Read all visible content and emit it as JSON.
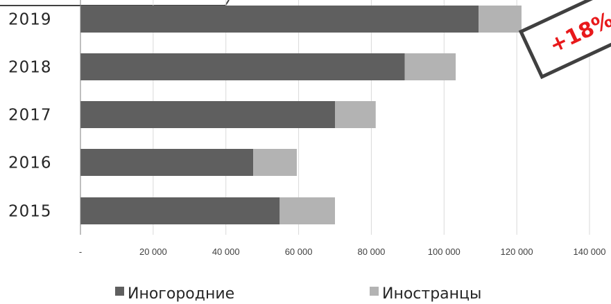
{
  "colors": {
    "inogorodnie": "#5f5f5f",
    "inostrantsy": "#b3b3b3",
    "grid": "#d9d9d9",
    "axis": "#7f7f7f",
    "stamp_border": "#404040",
    "stamp_text": "#e8191b"
  },
  "stamp": {
    "text": "+18%"
  },
  "chart_data": {
    "type": "bar",
    "orientation": "horizontal",
    "stacked": true,
    "categories": [
      "2019",
      "2018",
      "2017",
      "2016",
      "2015"
    ],
    "series": [
      {
        "name": "Иногородние",
        "values": [
          109500,
          89200,
          70000,
          47500,
          54800
        ]
      },
      {
        "name": "Иностранцы",
        "values": [
          11800,
          14000,
          11200,
          12000,
          15200
        ]
      }
    ],
    "xlim": [
      0,
      140000
    ],
    "x_ticks": [
      0,
      20000,
      40000,
      60000,
      80000,
      100000,
      120000,
      140000
    ],
    "x_tick_labels": [
      "-",
      "20 000",
      "40 000",
      "60 000",
      "80 000",
      "100 000",
      "120 000",
      "140 000"
    ],
    "grid": "vertical",
    "legend_position": "bottom"
  }
}
